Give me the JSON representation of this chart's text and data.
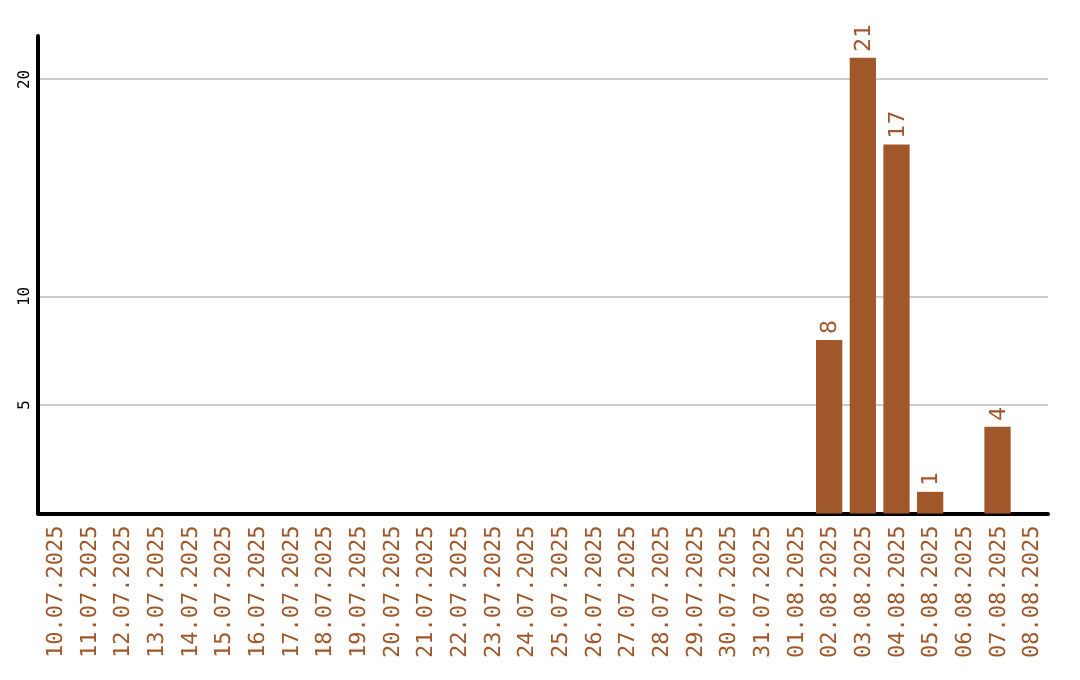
{
  "chart_data": {
    "type": "bar",
    "categories": [
      "10.07.2025",
      "11.07.2025",
      "12.07.2025",
      "13.07.2025",
      "14.07.2025",
      "15.07.2025",
      "16.07.2025",
      "17.07.2025",
      "18.07.2025",
      "19.07.2025",
      "20.07.2025",
      "21.07.2025",
      "22.07.2025",
      "23.07.2025",
      "24.07.2025",
      "25.07.2025",
      "26.07.2025",
      "27.07.2025",
      "28.07.2025",
      "29.07.2025",
      "30.07.2025",
      "31.07.2025",
      "01.08.2025",
      "02.08.2025",
      "03.08.2025",
      "04.08.2025",
      "05.08.2025",
      "06.08.2025",
      "07.08.2025",
      "08.08.2025"
    ],
    "values": [
      null,
      null,
      null,
      null,
      null,
      null,
      null,
      null,
      null,
      null,
      null,
      null,
      null,
      null,
      null,
      null,
      null,
      null,
      null,
      null,
      null,
      null,
      null,
      8,
      21,
      17,
      1,
      null,
      4,
      null
    ],
    "color": "#a0572a",
    "ylim": [
      0,
      22
    ],
    "yticks": [
      5,
      10,
      20
    ],
    "grid": "y",
    "data_labels": true
  }
}
